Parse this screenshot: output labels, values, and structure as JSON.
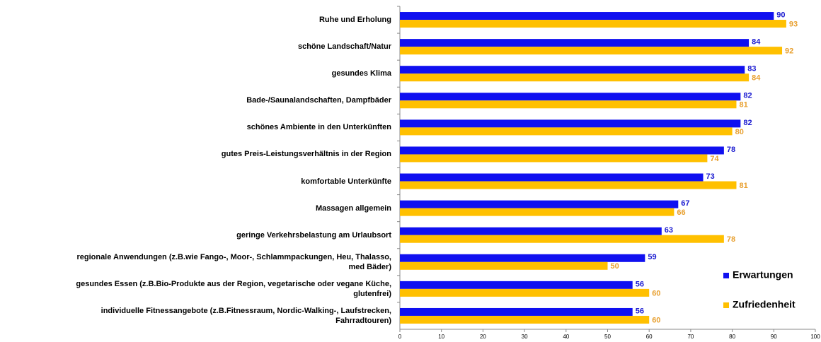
{
  "chart_data": {
    "type": "bar",
    "orientation": "horizontal",
    "categories": [
      "Ruhe und Erholung",
      "schöne Landschaft/Natur",
      "gesundes Klima",
      "Bade-/Saunalandschaften, Dampfbäder",
      "schönes Ambiente in den Unterkünften",
      "gutes Preis-Leistungsverhältnis in der Region",
      "komfortable Unterkünfte",
      "Massagen allgemein",
      "geringe Verkehrsbelastung am Urlaubsort",
      "regionale Anwendungen (z.B.wie Fango-, Moor-, Schlammpackungen, Heu, Thalasso,\nmed Bäder)",
      "gesundes Essen (z.B.Bio-Produkte aus der Region, vegetarische oder vegane Küche,\nglutenfrei)",
      "individuelle Fitnessangebote (z.B.Fitnessraum, Nordic-Walking-, Laufstrecken,\nFahrradtouren)"
    ],
    "series": [
      {
        "name": "Erwartungen",
        "color": "#1010f0",
        "label_color": "#1a1ad0",
        "values": [
          90,
          84,
          83,
          82,
          82,
          78,
          73,
          67,
          63,
          59,
          56,
          56
        ]
      },
      {
        "name": "Zufriedenheit",
        "color": "#ffc000",
        "label_color": "#e8a030",
        "values": [
          93,
          92,
          84,
          81,
          80,
          74,
          81,
          66,
          78,
          50,
          60,
          60
        ]
      }
    ],
    "xlim": [
      0,
      100
    ],
    "xticks": [
      0,
      10,
      20,
      30,
      40,
      50,
      60,
      70,
      80,
      90,
      100
    ],
    "grid": false,
    "legend": "right"
  }
}
